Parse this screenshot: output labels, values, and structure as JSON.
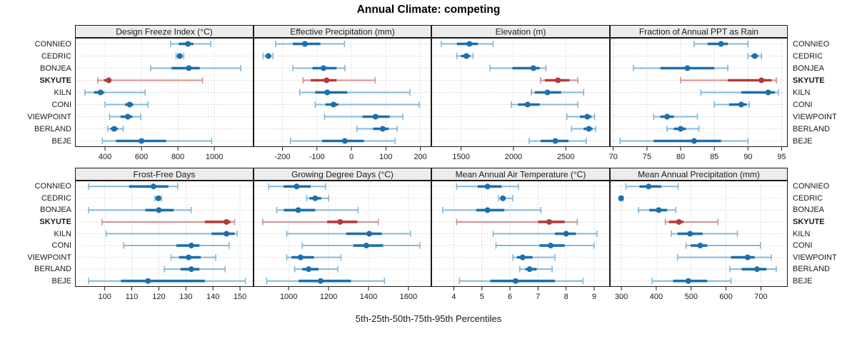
{
  "title": "Annual Climate: competing",
  "caption": "5th-25th-50th-75th-95th Percentiles",
  "locations": [
    "CONNIEO",
    "CEDRIC",
    "BONJEA",
    "SKYUTE",
    "KILN",
    "CONI",
    "VIEWPOINT",
    "BERLAND",
    "BEJE"
  ],
  "highlight_location": "SKYUTE",
  "colors": {
    "series_dark": "#1c6fad",
    "series_light": "#85b7da",
    "highlight_dark": "#b43b3b",
    "highlight_light": "#d49090",
    "strip_bg": "#ececec",
    "panel_border": "#1a1a1a",
    "grid": "#cfcfcf",
    "tick": "#1a1a1a",
    "outer_tick": "#666666",
    "text": "#1a1a1a"
  },
  "chart_data": [
    {
      "type": "interval_dotplot",
      "title": "Design Freeze Index (°C)",
      "percentiles": [
        "5th",
        "25th",
        "50th",
        "75th",
        "95th"
      ],
      "xlim": [
        235,
        1215
      ],
      "xticks": [
        400,
        600,
        800,
        1000
      ],
      "rows": [
        {
          "location": "CONNIEO",
          "values": [
            760,
            805,
            855,
            885,
            980
          ]
        },
        {
          "location": "CEDRIC",
          "values": [
            790,
            800,
            810,
            822,
            832
          ]
        },
        {
          "location": "BONJEA",
          "values": [
            650,
            765,
            860,
            920,
            1145
          ]
        },
        {
          "location": "SKYUTE",
          "values": [
            360,
            395,
            420,
            435,
            935
          ]
        },
        {
          "location": "KILN",
          "values": [
            290,
            340,
            375,
            395,
            620
          ]
        },
        {
          "location": "CONI",
          "values": [
            400,
            510,
            535,
            555,
            635
          ]
        },
        {
          "location": "VIEWPOINT",
          "values": [
            425,
            485,
            525,
            550,
            595
          ]
        },
        {
          "location": "BERLAND",
          "values": [
            415,
            430,
            450,
            470,
            500
          ]
        },
        {
          "location": "BEJE",
          "values": [
            385,
            460,
            600,
            735,
            985
          ]
        }
      ]
    },
    {
      "type": "interval_dotplot",
      "title": "Effective Precipitation (mm)",
      "percentiles": [
        "5th",
        "25th",
        "50th",
        "75th",
        "95th"
      ],
      "xlim": [
        -284,
        232
      ],
      "xticks": [
        -200,
        -100,
        0,
        100,
        200
      ],
      "rows": [
        {
          "location": "CONNIEO",
          "values": [
            -220,
            -170,
            -135,
            -90,
            -20
          ]
        },
        {
          "location": "CEDRIC",
          "values": [
            -256,
            -248,
            -241,
            -234,
            -228
          ]
        },
        {
          "location": "BONJEA",
          "values": [
            -170,
            -113,
            -81,
            -43,
            -19
          ]
        },
        {
          "location": "SKYUTE",
          "values": [
            -140,
            -118,
            -72,
            -43,
            69
          ]
        },
        {
          "location": "KILN",
          "values": [
            -150,
            -105,
            -70,
            -12,
            170
          ]
        },
        {
          "location": "CONI",
          "values": [
            -105,
            -75,
            -52,
            -38,
            197
          ]
        },
        {
          "location": "VIEWPOINT",
          "values": [
            -78,
            32,
            70,
            111,
            149
          ]
        },
        {
          "location": "BERLAND",
          "values": [
            16,
            63,
            91,
            108,
            133
          ]
        },
        {
          "location": "BEJE",
          "values": [
            -177,
            -85,
            -19,
            36,
            127
          ]
        }
      ]
    },
    {
      "type": "interval_dotplot",
      "title": "Elevation (m)",
      "percentiles": [
        "5th",
        "25th",
        "50th",
        "75th",
        "95th"
      ],
      "xlim": [
        1216,
        2921
      ],
      "xticks": [
        1500,
        2000,
        2500
      ],
      "rows": [
        {
          "location": "CONNIEO",
          "values": [
            1310,
            1460,
            1580,
            1660,
            1805
          ]
        },
        {
          "location": "CEDRIC",
          "values": [
            1460,
            1500,
            1550,
            1585,
            1615
          ]
        },
        {
          "location": "BONJEA",
          "values": [
            1775,
            1990,
            2190,
            2250,
            2310
          ]
        },
        {
          "location": "SKYUTE",
          "values": [
            2260,
            2300,
            2425,
            2535,
            2615
          ]
        },
        {
          "location": "KILN",
          "values": [
            2170,
            2205,
            2325,
            2455,
            2670
          ]
        },
        {
          "location": "CONI",
          "values": [
            1980,
            2045,
            2135,
            2250,
            2615
          ]
        },
        {
          "location": "VIEWPOINT",
          "values": [
            2510,
            2635,
            2705,
            2745,
            2775
          ]
        },
        {
          "location": "BERLAND",
          "values": [
            2555,
            2670,
            2720,
            2755,
            2785
          ]
        },
        {
          "location": "BEJE",
          "values": [
            2150,
            2260,
            2400,
            2525,
            2695
          ]
        }
      ]
    },
    {
      "type": "interval_dotplot",
      "title": "Fraction of Annual PPT as Rain",
      "percentiles": [
        "5th",
        "25th",
        "50th",
        "75th",
        "95th"
      ],
      "xlim": [
        69.5,
        95.9
      ],
      "xticks": [
        70,
        75,
        80,
        85,
        90,
        95
      ],
      "rows": [
        {
          "location": "CONNIEO",
          "values": [
            82,
            84,
            86,
            87,
            90
          ]
        },
        {
          "location": "CEDRIC",
          "values": [
            90,
            90.5,
            91,
            91.5,
            92
          ]
        },
        {
          "location": "BONJEA",
          "values": [
            73,
            77,
            81,
            85,
            87
          ]
        },
        {
          "location": "SKYUTE",
          "values": [
            80,
            87,
            92,
            93.5,
            94.2
          ]
        },
        {
          "location": "KILN",
          "values": [
            83,
            89,
            93,
            94,
            94.5
          ]
        },
        {
          "location": "CONI",
          "values": [
            85,
            87.2,
            89,
            89.8,
            90.2
          ]
        },
        {
          "location": "VIEWPOINT",
          "values": [
            76,
            77,
            78,
            79,
            82.5
          ]
        },
        {
          "location": "BERLAND",
          "values": [
            78,
            79,
            80,
            80.8,
            82.7
          ]
        },
        {
          "location": "BEJE",
          "values": [
            71,
            76,
            82,
            86,
            90
          ]
        }
      ]
    },
    {
      "type": "interval_dotplot",
      "title": "Frost-Free Days",
      "percentiles": [
        "5th",
        "25th",
        "50th",
        "75th",
        "95th"
      ],
      "xlim": [
        89,
        155
      ],
      "xticks": [
        100,
        110,
        120,
        130,
        140,
        150
      ],
      "rows": [
        {
          "location": "CONNIEO",
          "values": [
            94,
            109,
            118,
            123.5,
            127
          ]
        },
        {
          "location": "CEDRIC",
          "values": [
            118.5,
            119.2,
            119.8,
            120.4,
            121
          ]
        },
        {
          "location": "BONJEA",
          "values": [
            94,
            115,
            120,
            125.5,
            132
          ]
        },
        {
          "location": "SKYUTE",
          "values": [
            99,
            137,
            145,
            146.5,
            148
          ]
        },
        {
          "location": "KILN",
          "values": [
            100.5,
            139.5,
            145,
            148,
            149
          ]
        },
        {
          "location": "CONI",
          "values": [
            107,
            126.5,
            132,
            135,
            146
          ]
        },
        {
          "location": "VIEWPOINT",
          "values": [
            124.5,
            127.5,
            131,
            135.5,
            141
          ]
        },
        {
          "location": "BERLAND",
          "values": [
            122,
            128,
            132,
            135,
            144.5
          ]
        },
        {
          "location": "BEJE",
          "values": [
            94,
            106,
            116,
            137,
            152
          ]
        }
      ]
    },
    {
      "type": "interval_dotplot",
      "title": "Growing Degree Days (°C)",
      "percentiles": [
        "5th",
        "25th",
        "50th",
        "75th",
        "95th"
      ],
      "xlim": [
        824,
        1715
      ],
      "xticks": [
        1000,
        1200,
        1400,
        1600
      ],
      "rows": [
        {
          "location": "CONNIEO",
          "values": [
            900,
            975,
            1040,
            1110,
            1185
          ]
        },
        {
          "location": "CEDRIC",
          "values": [
            1090,
            1105,
            1133,
            1163,
            1200
          ]
        },
        {
          "location": "BONJEA",
          "values": [
            940,
            976,
            1048,
            1133,
            1348
          ]
        },
        {
          "location": "SKYUTE",
          "values": [
            870,
            1193,
            1258,
            1344,
            1449
          ]
        },
        {
          "location": "KILN",
          "values": [
            990,
            1288,
            1404,
            1467,
            1610
          ]
        },
        {
          "location": "CONI",
          "values": [
            1068,
            1324,
            1389,
            1473,
            1657
          ]
        },
        {
          "location": "VIEWPOINT",
          "values": [
            990,
            1014,
            1060,
            1127,
            1262
          ]
        },
        {
          "location": "BERLAND",
          "values": [
            1030,
            1068,
            1100,
            1150,
            1246
          ]
        },
        {
          "location": "BEJE",
          "values": [
            890,
            1050,
            1160,
            1312,
            1480
          ]
        }
      ]
    },
    {
      "type": "interval_dotplot",
      "title": "Mean Annual Air Temperature (°C)",
      "percentiles": [
        "5th",
        "25th",
        "50th",
        "75th",
        "95th"
      ],
      "xlim": [
        3.2,
        9.56
      ],
      "xticks": [
        4,
        5,
        6,
        7,
        8,
        9
      ],
      "rows": [
        {
          "location": "CONNIEO",
          "values": [
            4.1,
            4.85,
            5.2,
            5.7,
            6.3
          ]
        },
        {
          "location": "CEDRIC",
          "values": [
            5.6,
            5.65,
            5.75,
            5.85,
            6.1
          ]
        },
        {
          "location": "BONJEA",
          "values": [
            3.6,
            4.8,
            5.2,
            5.8,
            7.1
          ]
        },
        {
          "location": "SKYUTE",
          "values": [
            4.1,
            7.0,
            7.4,
            7.95,
            8.4
          ]
        },
        {
          "location": "KILN",
          "values": [
            5.4,
            7.6,
            8.0,
            8.35,
            9.1
          ]
        },
        {
          "location": "CONI",
          "values": [
            5.5,
            7.05,
            7.45,
            7.95,
            9.0
          ]
        },
        {
          "location": "VIEWPOINT",
          "values": [
            6.1,
            6.25,
            6.45,
            6.8,
            7.6
          ]
        },
        {
          "location": "BERLAND",
          "values": [
            6.35,
            6.55,
            6.7,
            6.95,
            7.5
          ]
        },
        {
          "location": "BEJE",
          "values": [
            4.2,
            5.3,
            6.2,
            7.6,
            8.6
          ]
        }
      ]
    },
    {
      "type": "interval_dotplot",
      "title": "Mean Annual Precipitation (mm)",
      "percentiles": [
        "5th",
        "25th",
        "50th",
        "75th",
        "95th"
      ],
      "xlim": [
        267,
        777
      ],
      "xticks": [
        300,
        400,
        500,
        600,
        700
      ],
      "rows": [
        {
          "location": "CONNIEO",
          "values": [
            313,
            352,
            378,
            414,
            463
          ]
        },
        {
          "location": "CEDRIC",
          "values": [
            295,
            297,
            299,
            302,
            305
          ]
        },
        {
          "location": "BONJEA",
          "values": [
            349,
            380,
            407,
            431,
            456
          ]
        },
        {
          "location": "SKYUTE",
          "values": [
            426,
            437,
            465,
            478,
            577
          ]
        },
        {
          "location": "KILN",
          "values": [
            443,
            461,
            497,
            533,
            633
          ]
        },
        {
          "location": "CONI",
          "values": [
            485,
            499,
            526,
            546,
            699
          ]
        },
        {
          "location": "VIEWPOINT",
          "values": [
            461,
            614,
            662,
            682,
            730
          ]
        },
        {
          "location": "BERLAND",
          "values": [
            611,
            645,
            689,
            716,
            744
          ]
        },
        {
          "location": "BEJE",
          "values": [
            388,
            448,
            492,
            546,
            614
          ]
        }
      ]
    }
  ]
}
